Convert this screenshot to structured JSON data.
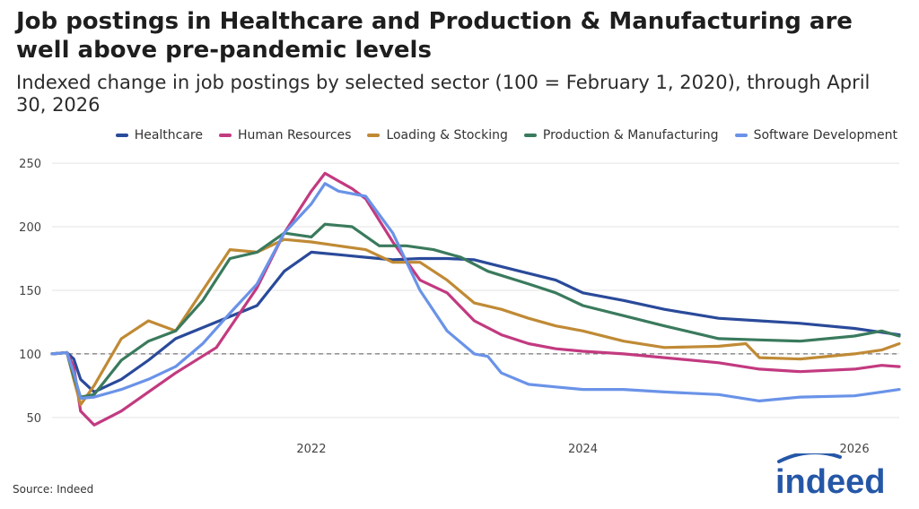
{
  "title": "Job postings in Healthcare and Production & Manufacturing are well above pre-pandemic levels",
  "subtitle": "Indexed change in job postings by selected sector (100 = February 1, 2020), through April 30, 2026",
  "source": "Source: Indeed",
  "logo_text": "indeed",
  "chart_data": {
    "type": "line",
    "x_unit": "year",
    "xlim": [
      2020.09,
      2026.33
    ],
    "ylim": [
      40,
      255
    ],
    "yticks": [
      50,
      100,
      150,
      200,
      250
    ],
    "ytick_labels": [
      "50",
      "100",
      "150",
      "200",
      "250"
    ],
    "xticks": [
      2022,
      2024,
      2026
    ],
    "xtick_labels": [
      "2022",
      "2024",
      "2026"
    ],
    "reference_line": 100,
    "grid": true,
    "legend_position": "top-right",
    "series": [
      {
        "name": "Healthcare",
        "color": "#2a4a9a",
        "x": [
          2020.09,
          2020.2,
          2020.25,
          2020.3,
          2020.4,
          2020.6,
          2020.8,
          2021,
          2021.3,
          2021.6,
          2021.8,
          2022,
          2022.2,
          2022.4,
          2022.6,
          2022.8,
          2023,
          2023.2,
          2023.5,
          2023.8,
          2024,
          2024.3,
          2024.6,
          2025,
          2025.3,
          2025.6,
          2026,
          2026.2,
          2026.33
        ],
        "y": [
          100,
          101,
          96,
          80,
          70,
          80,
          95,
          112,
          125,
          138,
          165,
          180,
          178,
          176,
          174,
          175,
          175,
          174,
          166,
          158,
          148,
          142,
          135,
          128,
          126,
          124,
          120,
          117,
          115
        ]
      },
      {
        "name": "Human Resources",
        "color": "#c23a80",
        "x": [
          2020.09,
          2020.2,
          2020.25,
          2020.3,
          2020.4,
          2020.6,
          2020.8,
          2021,
          2021.3,
          2021.6,
          2021.8,
          2022,
          2022.1,
          2022.2,
          2022.3,
          2022.4,
          2022.6,
          2022.8,
          2023,
          2023.2,
          2023.4,
          2023.6,
          2023.8,
          2024,
          2024.3,
          2024.6,
          2025,
          2025.3,
          2025.6,
          2026,
          2026.2,
          2026.33
        ],
        "y": [
          100,
          101,
          90,
          55,
          44,
          55,
          70,
          85,
          105,
          152,
          195,
          228,
          242,
          236,
          230,
          222,
          188,
          158,
          148,
          126,
          115,
          108,
          104,
          102,
          100,
          97,
          93,
          88,
          86,
          88,
          91,
          90
        ]
      },
      {
        "name": "Loading & Stocking",
        "color": "#c08a35",
        "x": [
          2020.09,
          2020.2,
          2020.25,
          2020.3,
          2020.4,
          2020.6,
          2020.8,
          2021,
          2021.2,
          2021.4,
          2021.6,
          2021.8,
          2022,
          2022.2,
          2022.4,
          2022.6,
          2022.8,
          2023,
          2023.2,
          2023.4,
          2023.6,
          2023.8,
          2024,
          2024.3,
          2024.6,
          2025,
          2025.2,
          2025.3,
          2025.6,
          2026,
          2026.2,
          2026.33
        ],
        "y": [
          100,
          101,
          80,
          60,
          75,
          112,
          126,
          118,
          150,
          182,
          180,
          190,
          188,
          185,
          182,
          172,
          172,
          158,
          140,
          135,
          128,
          122,
          118,
          110,
          105,
          106,
          108,
          97,
          96,
          100,
          103,
          108
        ]
      },
      {
        "name": "Production & Manufacturing",
        "color": "#3a7a5d",
        "x": [
          2020.09,
          2020.2,
          2020.25,
          2020.3,
          2020.4,
          2020.6,
          2020.8,
          2021,
          2021.2,
          2021.4,
          2021.6,
          2021.8,
          2022,
          2022.1,
          2022.3,
          2022.5,
          2022.7,
          2022.9,
          2023.1,
          2023.3,
          2023.6,
          2023.8,
          2024,
          2024.3,
          2024.6,
          2025,
          2025.3,
          2025.6,
          2026,
          2026.2,
          2026.33
        ],
        "y": [
          100,
          101,
          82,
          66,
          68,
          95,
          110,
          118,
          142,
          175,
          180,
          195,
          192,
          202,
          200,
          185,
          185,
          182,
          176,
          165,
          155,
          148,
          138,
          130,
          122,
          112,
          111,
          110,
          114,
          118,
          114
        ]
      },
      {
        "name": "Software Development",
        "color": "#6a93e8",
        "x": [
          2020.09,
          2020.2,
          2020.25,
          2020.3,
          2020.4,
          2020.6,
          2020.8,
          2021,
          2021.2,
          2021.4,
          2021.6,
          2021.8,
          2022,
          2022.1,
          2022.2,
          2022.4,
          2022.6,
          2022.8,
          2023,
          2023.2,
          2023.3,
          2023.4,
          2023.6,
          2023.8,
          2024,
          2024.3,
          2024.6,
          2025,
          2025.3,
          2025.6,
          2026,
          2026.2,
          2026.33
        ],
        "y": [
          100,
          101,
          85,
          65,
          66,
          72,
          80,
          90,
          108,
          132,
          155,
          195,
          218,
          234,
          228,
          224,
          195,
          150,
          118,
          100,
          98,
          85,
          76,
          74,
          72,
          72,
          70,
          68,
          63,
          66,
          67,
          70,
          72
        ]
      }
    ]
  }
}
